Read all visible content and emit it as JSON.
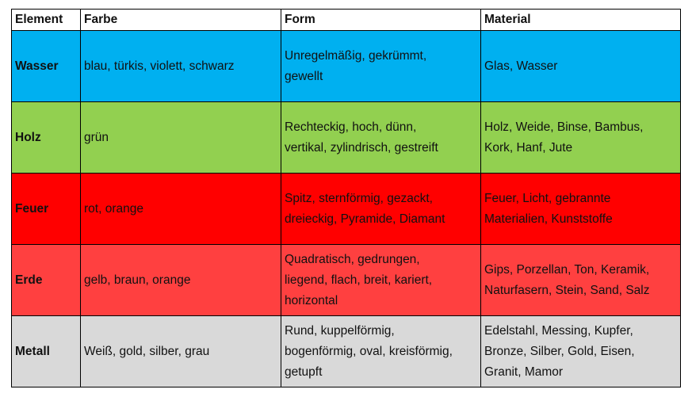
{
  "table": {
    "headers": [
      "Element",
      "Farbe",
      "Form",
      "Material"
    ],
    "rows": [
      {
        "element": "Wasser",
        "color": "#00b0f0",
        "farbe": "blau, türkis, violett, schwarz",
        "form": [
          "Unregelmäßig, gekrümmt,",
          "gewellt"
        ],
        "material": [
          "Glas, Wasser"
        ]
      },
      {
        "element": "Holz",
        "color": "#92d050",
        "farbe": "grün",
        "form": [
          "Rechteckig, hoch, dünn,",
          "vertikal, zylindrisch, gestreift"
        ],
        "material": [
          "Holz, Weide, Binse, Bambus,",
          "Kork, Hanf, Jute"
        ]
      },
      {
        "element": "Feuer",
        "color": "#ff0000",
        "farbe": "rot, orange",
        "form": [
          "Spitz, sternförmig, gezackt,",
          "dreieckig, Pyramide, Diamant"
        ],
        "material": [
          "Feuer, Licht, gebrannte",
          "Materialien, Kunststoffe"
        ]
      },
      {
        "element": "Erde",
        "color": "#ff4040",
        "farbe": "gelb, braun, orange",
        "form": [
          "Quadratisch, gedrungen,",
          "liegend, flach, breit, kariert,",
          "horizontal"
        ],
        "material": [
          "Gips, Porzellan, Ton, Keramik,",
          "Naturfasern, Stein, Sand, Salz"
        ]
      },
      {
        "element": "Metall",
        "color": "#d9d9d9",
        "farbe": "Weiß, gold, silber, grau",
        "form": [
          "Rund, kuppelförmig,",
          "bogenförmig, oval, kreisförmig,",
          "getupft"
        ],
        "material": [
          "Edelstahl, Messing, Kupfer,",
          "Bronze, Silber, Gold, Eisen,",
          "Granit, Mamor"
        ]
      }
    ]
  }
}
